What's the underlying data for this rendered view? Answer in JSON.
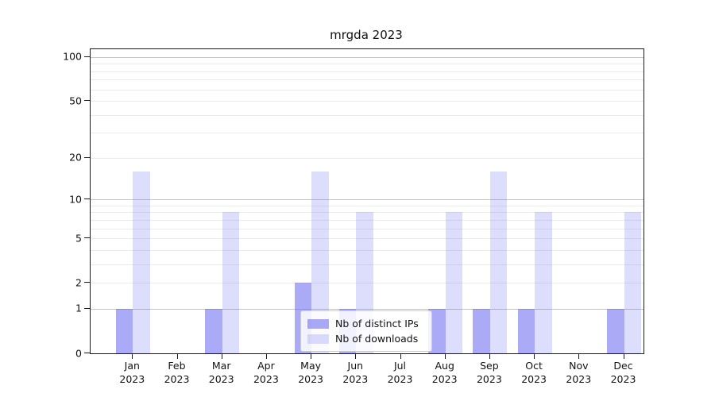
{
  "figure": {
    "background": "#ffffff"
  },
  "chart_data": {
    "type": "bar",
    "title": "mrgda 2023",
    "categories": [
      "Jan 2023",
      "Feb 2023",
      "Mar 2023",
      "Apr 2023",
      "May 2023",
      "Jun 2023",
      "Jul 2023",
      "Aug 2023",
      "Sep 2023",
      "Oct 2023",
      "Nov 2023",
      "Dec 2023"
    ],
    "series": [
      {
        "name": "Nb of distinct IPs",
        "color": "rgba(100,100,240,0.55)",
        "values": [
          1,
          0,
          1,
          0,
          2,
          1,
          0,
          1,
          1,
          1,
          0,
          1
        ]
      },
      {
        "name": "Nb of downloads",
        "color": "rgba(100,100,240,0.22)",
        "values": [
          16,
          0,
          8,
          0,
          16,
          8,
          0,
          8,
          16,
          8,
          0,
          8
        ]
      }
    ],
    "xlabel": "",
    "ylabel": "",
    "yscale": "log1p",
    "ylim": [
      0,
      113
    ],
    "y_tick_values": [
      0,
      1,
      2,
      5,
      10,
      20,
      50,
      100
    ],
    "y_major_gridlines": [
      1,
      10,
      100
    ],
    "y_minor_gridlines": [
      2,
      3,
      4,
      5,
      6,
      7,
      8,
      9,
      20,
      30,
      40,
      50,
      60,
      70,
      80,
      90
    ],
    "grid": true,
    "legend_position": "lower center"
  },
  "colors": {
    "major_grid": "#c3c3c3",
    "minor_grid": "#ebebeb",
    "axis": "#1a1a1a"
  }
}
